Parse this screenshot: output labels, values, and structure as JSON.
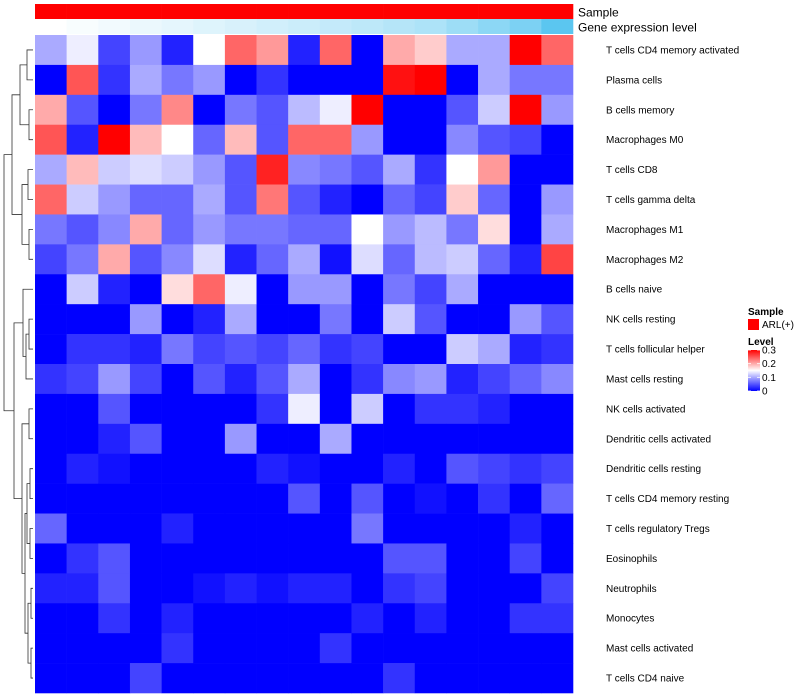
{
  "chart_data": {
    "type": "heatmap",
    "title": "",
    "annotation_tracks": [
      {
        "label": "Sample",
        "color": "#ff0000"
      },
      {
        "label": "Gene expression level",
        "gradient": [
          "#ffffff",
          "#5bc6f0"
        ]
      }
    ],
    "rows": [
      "T cells CD4 memory activated",
      "Plasma cells",
      "B cells memory",
      "Macrophages M0",
      "T cells CD8",
      "T cells gamma delta",
      "Macrophages M1",
      "Macrophages M2",
      "B cells naive",
      "NK cells resting",
      "T cells follicular helper",
      "Mast cells resting",
      "NK cells activated",
      "Dendritic cells activated",
      "Dendritic cells resting",
      "T cells CD4 memory resting",
      "T cells regulatory  Tregs",
      "Eosinophils",
      "Neutrophils",
      "Monocytes",
      "Mast cells activated",
      "T cells CD4 naive"
    ],
    "column_count": 17,
    "values": [
      [
        0.1,
        0.14,
        0.04,
        0.09,
        0.02,
        0.15,
        0.24,
        0.21,
        0.02,
        0.24,
        0.0,
        0.2,
        0.18,
        0.1,
        0.1,
        0.3,
        0.24
      ],
      [
        0.0,
        0.25,
        0.03,
        0.1,
        0.07,
        0.09,
        0.0,
        0.03,
        0.0,
        0.0,
        0.0,
        0.29,
        0.3,
        0.0,
        0.1,
        0.07,
        0.07
      ],
      [
        0.2,
        0.05,
        0.0,
        0.07,
        0.22,
        0.0,
        0.07,
        0.05,
        0.11,
        0.14,
        0.3,
        0.0,
        0.0,
        0.05,
        0.12,
        0.3,
        0.09
      ],
      [
        0.25,
        0.02,
        0.3,
        0.19,
        0.15,
        0.06,
        0.19,
        0.05,
        0.24,
        0.24,
        0.09,
        0.0,
        0.0,
        0.08,
        0.05,
        0.04,
        0.0
      ],
      [
        0.1,
        0.19,
        0.12,
        0.13,
        0.12,
        0.09,
        0.05,
        0.28,
        0.08,
        0.07,
        0.05,
        0.1,
        0.03,
        0.15,
        0.21,
        0.0,
        0.0
      ],
      [
        0.24,
        0.12,
        0.09,
        0.06,
        0.06,
        0.1,
        0.05,
        0.23,
        0.05,
        0.02,
        0.0,
        0.06,
        0.04,
        0.18,
        0.06,
        0.0,
        0.09
      ],
      [
        0.07,
        0.05,
        0.08,
        0.2,
        0.06,
        0.09,
        0.07,
        0.07,
        0.06,
        0.06,
        0.15,
        0.09,
        0.11,
        0.07,
        0.17,
        0.0,
        0.1
      ],
      [
        0.04,
        0.07,
        0.2,
        0.05,
        0.08,
        0.13,
        0.02,
        0.06,
        0.1,
        0.01,
        0.13,
        0.06,
        0.11,
        0.12,
        0.06,
        0.02,
        0.26
      ],
      [
        0.0,
        0.12,
        0.02,
        0.0,
        0.17,
        0.24,
        0.14,
        0.0,
        0.09,
        0.09,
        0.0,
        0.07,
        0.04,
        0.1,
        0.0,
        0.0,
        0.0
      ],
      [
        0.0,
        0.0,
        0.0,
        0.09,
        0.0,
        0.02,
        0.1,
        0.0,
        0.0,
        0.07,
        0.0,
        0.12,
        0.05,
        0.0,
        0.0,
        0.09,
        0.05
      ],
      [
        0.0,
        0.03,
        0.03,
        0.02,
        0.07,
        0.04,
        0.05,
        0.04,
        0.06,
        0.03,
        0.04,
        0.0,
        0.0,
        0.12,
        0.1,
        0.02,
        0.03
      ],
      [
        0.03,
        0.04,
        0.09,
        0.04,
        0.0,
        0.05,
        0.02,
        0.05,
        0.1,
        0.0,
        0.03,
        0.08,
        0.09,
        0.02,
        0.04,
        0.06,
        0.08
      ],
      [
        0.0,
        0.0,
        0.05,
        0.0,
        0.0,
        0.0,
        0.0,
        0.03,
        0.14,
        0.0,
        0.12,
        0.0,
        0.03,
        0.03,
        0.02,
        0.0,
        0.0
      ],
      [
        0.0,
        0.0,
        0.02,
        0.05,
        0.0,
        0.0,
        0.09,
        0.0,
        0.0,
        0.1,
        0.0,
        0.0,
        0.0,
        0.0,
        0.0,
        0.0,
        0.0
      ],
      [
        0.0,
        0.02,
        0.01,
        0.0,
        0.0,
        0.0,
        0.0,
        0.02,
        0.01,
        0.0,
        0.0,
        0.02,
        0.0,
        0.05,
        0.04,
        0.03,
        0.04
      ],
      [
        0.0,
        0.0,
        0.0,
        0.0,
        0.0,
        0.0,
        0.0,
        0.0,
        0.05,
        0.0,
        0.05,
        0.0,
        0.01,
        0.0,
        0.03,
        0.0,
        0.06
      ],
      [
        0.06,
        0.0,
        0.0,
        0.0,
        0.02,
        0.0,
        0.0,
        0.0,
        0.0,
        0.0,
        0.07,
        0.0,
        0.0,
        0.0,
        0.0,
        0.02,
        0.0
      ],
      [
        0.0,
        0.03,
        0.05,
        0.0,
        0.0,
        0.0,
        0.0,
        0.0,
        0.0,
        0.0,
        0.0,
        0.05,
        0.05,
        0.0,
        0.0,
        0.04,
        0.0
      ],
      [
        0.02,
        0.02,
        0.05,
        0.0,
        0.0,
        0.01,
        0.02,
        0.01,
        0.02,
        0.02,
        0.0,
        0.03,
        0.04,
        0.0,
        0.0,
        0.0,
        0.04
      ],
      [
        0.0,
        0.0,
        0.03,
        0.0,
        0.02,
        0.0,
        0.0,
        0.0,
        0.0,
        0.0,
        0.02,
        0.0,
        0.02,
        0.0,
        0.0,
        0.03,
        0.03
      ],
      [
        0.0,
        0.0,
        0.0,
        0.0,
        0.03,
        0.0,
        0.0,
        0.0,
        0.0,
        0.03,
        0.0,
        0.0,
        0.0,
        0.0,
        0.0,
        0.0,
        0.0
      ],
      [
        0.0,
        0.0,
        0.0,
        0.04,
        0.0,
        0.0,
        0.0,
        0.0,
        0.0,
        0.0,
        0.0,
        0.03,
        0.0,
        0.0,
        0.0,
        0.0,
        0.0
      ]
    ],
    "gene_expression_level": [
      0.0,
      0.04,
      0.08,
      0.12,
      0.16,
      0.2,
      0.24,
      0.28,
      0.32,
      0.36,
      0.4,
      0.45,
      0.5,
      0.6,
      0.7,
      0.8,
      1.0
    ],
    "color_scale": {
      "min": 0,
      "max": 0.3,
      "colors": [
        "#0000ff",
        "#ffffff",
        "#ff0000"
      ]
    },
    "legend": {
      "sample_title": "Sample",
      "sample_item": "ARL(+)",
      "sample_color": "#ff0000",
      "level_title": "Level",
      "ticks": [
        {
          "value": 0.3,
          "label": "0.3"
        },
        {
          "value": 0.2,
          "label": "0.2"
        },
        {
          "value": 0.1,
          "label": "0.1"
        },
        {
          "value": 0.0,
          "label": "0"
        }
      ],
      "placement": "right"
    },
    "dendrogram": "rows, left"
  }
}
